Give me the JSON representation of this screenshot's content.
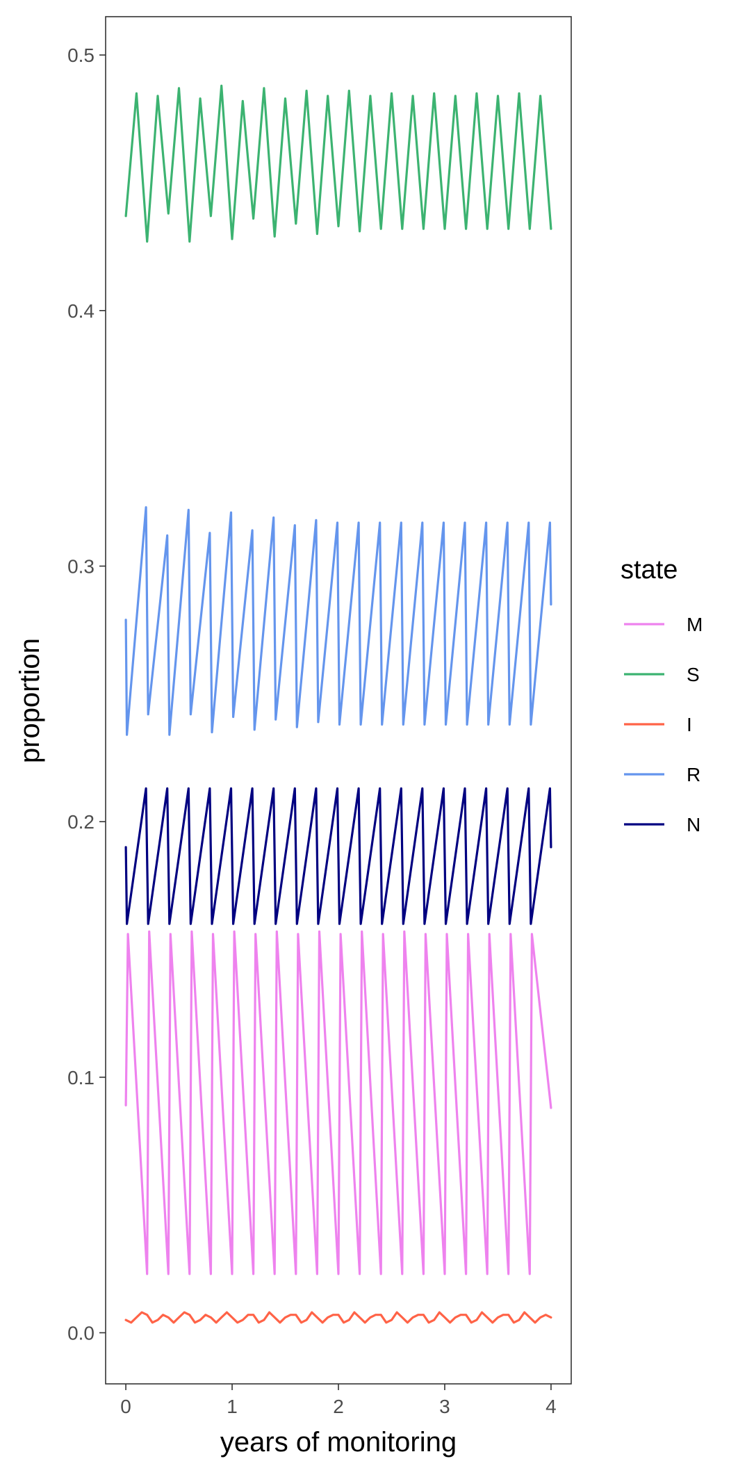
{
  "chart_data": {
    "type": "line",
    "title": "",
    "xlabel": "years of monitoring",
    "ylabel": "proportion",
    "xlim": [
      -0.19,
      4.19
    ],
    "ylim": [
      -0.02,
      0.515
    ],
    "x_ticks": [
      0,
      1,
      2,
      3,
      4
    ],
    "x_tick_labels": [
      "0",
      "1",
      "2",
      "3",
      "4"
    ],
    "y_ticks": [
      0.0,
      0.1,
      0.2,
      0.3,
      0.4,
      0.5
    ],
    "y_tick_labels": [
      "0.0",
      "0.1",
      "0.2",
      "0.3",
      "0.4",
      "0.5"
    ],
    "grid": false,
    "legend": {
      "title": "state",
      "position": "right"
    },
    "series": [
      {
        "name": "M",
        "color": "#EE82EE",
        "x": [
          0.0,
          0.02,
          0.2,
          0.22,
          0.4,
          0.42,
          0.6,
          0.62,
          0.8,
          0.82,
          1.0,
          1.02,
          1.2,
          1.22,
          1.4,
          1.42,
          1.6,
          1.62,
          1.8,
          1.82,
          2.0,
          2.02,
          2.2,
          2.22,
          2.4,
          2.42,
          2.6,
          2.62,
          2.8,
          2.82,
          3.0,
          3.02,
          3.2,
          3.22,
          3.4,
          3.42,
          3.6,
          3.62,
          3.8,
          3.82,
          4.0
        ],
        "y": [
          0.089,
          0.156,
          0.023,
          0.157,
          0.023,
          0.156,
          0.023,
          0.157,
          0.023,
          0.156,
          0.023,
          0.157,
          0.023,
          0.156,
          0.023,
          0.157,
          0.023,
          0.156,
          0.023,
          0.157,
          0.023,
          0.156,
          0.023,
          0.157,
          0.023,
          0.156,
          0.023,
          0.157,
          0.023,
          0.156,
          0.023,
          0.156,
          0.023,
          0.156,
          0.023,
          0.156,
          0.023,
          0.156,
          0.023,
          0.156,
          0.088
        ]
      },
      {
        "name": "S",
        "color": "#3CB371",
        "x": [
          0.0,
          0.1,
          0.2,
          0.3,
          0.4,
          0.5,
          0.6,
          0.7,
          0.8,
          0.9,
          1.0,
          1.1,
          1.2,
          1.3,
          1.4,
          1.5,
          1.6,
          1.7,
          1.8,
          1.9,
          2.0,
          2.1,
          2.2,
          2.3,
          2.4,
          2.5,
          2.6,
          2.7,
          2.8,
          2.9,
          3.0,
          3.1,
          3.2,
          3.3,
          3.4,
          3.5,
          3.6,
          3.7,
          3.8,
          3.9,
          4.0
        ],
        "y": [
          0.437,
          0.485,
          0.427,
          0.484,
          0.438,
          0.487,
          0.427,
          0.483,
          0.437,
          0.488,
          0.428,
          0.482,
          0.436,
          0.487,
          0.429,
          0.483,
          0.434,
          0.486,
          0.43,
          0.484,
          0.433,
          0.486,
          0.431,
          0.484,
          0.432,
          0.485,
          0.432,
          0.484,
          0.432,
          0.485,
          0.432,
          0.484,
          0.432,
          0.485,
          0.432,
          0.484,
          0.432,
          0.485,
          0.432,
          0.484,
          0.432
        ]
      },
      {
        "name": "I",
        "color": "#FF6347",
        "x": [
          0.0,
          0.05,
          0.1,
          0.15,
          0.2,
          0.25,
          0.3,
          0.35,
          0.4,
          0.45,
          0.5,
          0.55,
          0.6,
          0.65,
          0.7,
          0.75,
          0.8,
          0.85,
          0.9,
          0.95,
          1.0,
          1.05,
          1.1,
          1.15,
          1.2,
          1.25,
          1.3,
          1.35,
          1.4,
          1.45,
          1.5,
          1.55,
          1.6,
          1.65,
          1.7,
          1.75,
          1.8,
          1.85,
          1.9,
          1.95,
          2.0,
          2.05,
          2.1,
          2.15,
          2.2,
          2.25,
          2.3,
          2.35,
          2.4,
          2.45,
          2.5,
          2.55,
          2.6,
          2.65,
          2.7,
          2.75,
          2.8,
          2.85,
          2.9,
          2.95,
          3.0,
          3.05,
          3.1,
          3.15,
          3.2,
          3.25,
          3.3,
          3.35,
          3.4,
          3.45,
          3.5,
          3.55,
          3.6,
          3.65,
          3.7,
          3.75,
          3.8,
          3.85,
          3.9,
          3.95,
          4.0
        ],
        "y": [
          0.005,
          0.004,
          0.006,
          0.008,
          0.007,
          0.004,
          0.005,
          0.007,
          0.006,
          0.004,
          0.006,
          0.008,
          0.007,
          0.004,
          0.005,
          0.007,
          0.006,
          0.004,
          0.006,
          0.008,
          0.006,
          0.004,
          0.005,
          0.007,
          0.007,
          0.004,
          0.005,
          0.008,
          0.006,
          0.004,
          0.006,
          0.007,
          0.007,
          0.004,
          0.005,
          0.008,
          0.006,
          0.004,
          0.006,
          0.007,
          0.007,
          0.004,
          0.005,
          0.008,
          0.006,
          0.004,
          0.006,
          0.007,
          0.007,
          0.004,
          0.005,
          0.008,
          0.006,
          0.004,
          0.006,
          0.007,
          0.007,
          0.004,
          0.005,
          0.008,
          0.006,
          0.004,
          0.006,
          0.007,
          0.007,
          0.004,
          0.005,
          0.008,
          0.006,
          0.004,
          0.006,
          0.007,
          0.007,
          0.004,
          0.005,
          0.008,
          0.006,
          0.004,
          0.006,
          0.007,
          0.006
        ]
      },
      {
        "name": "R",
        "color": "#6495ED",
        "x": [
          0.0,
          0.01,
          0.19,
          0.21,
          0.39,
          0.41,
          0.59,
          0.61,
          0.79,
          0.81,
          0.99,
          1.01,
          1.19,
          1.21,
          1.39,
          1.41,
          1.59,
          1.61,
          1.79,
          1.81,
          1.99,
          2.01,
          2.19,
          2.21,
          2.39,
          2.41,
          2.59,
          2.61,
          2.79,
          2.81,
          2.99,
          3.01,
          3.19,
          3.21,
          3.39,
          3.41,
          3.59,
          3.61,
          3.79,
          3.81,
          3.99,
          4.0
        ],
        "y": [
          0.279,
          0.234,
          0.323,
          0.242,
          0.312,
          0.234,
          0.322,
          0.242,
          0.313,
          0.235,
          0.321,
          0.241,
          0.314,
          0.236,
          0.319,
          0.24,
          0.316,
          0.237,
          0.318,
          0.239,
          0.317,
          0.238,
          0.317,
          0.238,
          0.317,
          0.238,
          0.317,
          0.238,
          0.317,
          0.238,
          0.317,
          0.238,
          0.317,
          0.238,
          0.317,
          0.238,
          0.317,
          0.238,
          0.317,
          0.238,
          0.317,
          0.285
        ]
      },
      {
        "name": "N",
        "color": "#000080",
        "x": [
          0.0,
          0.01,
          0.19,
          0.21,
          0.39,
          0.41,
          0.59,
          0.61,
          0.79,
          0.81,
          0.99,
          1.01,
          1.19,
          1.21,
          1.39,
          1.41,
          1.59,
          1.61,
          1.79,
          1.81,
          1.99,
          2.01,
          2.19,
          2.21,
          2.39,
          2.41,
          2.59,
          2.61,
          2.79,
          2.81,
          2.99,
          3.01,
          3.19,
          3.21,
          3.39,
          3.41,
          3.59,
          3.61,
          3.79,
          3.81,
          3.99,
          4.0
        ],
        "y": [
          0.19,
          0.16,
          0.213,
          0.16,
          0.213,
          0.16,
          0.213,
          0.16,
          0.213,
          0.16,
          0.213,
          0.16,
          0.213,
          0.16,
          0.213,
          0.16,
          0.213,
          0.16,
          0.213,
          0.16,
          0.213,
          0.16,
          0.213,
          0.16,
          0.213,
          0.16,
          0.213,
          0.16,
          0.213,
          0.16,
          0.213,
          0.16,
          0.213,
          0.16,
          0.213,
          0.16,
          0.213,
          0.16,
          0.213,
          0.16,
          0.213,
          0.19
        ]
      }
    ]
  }
}
